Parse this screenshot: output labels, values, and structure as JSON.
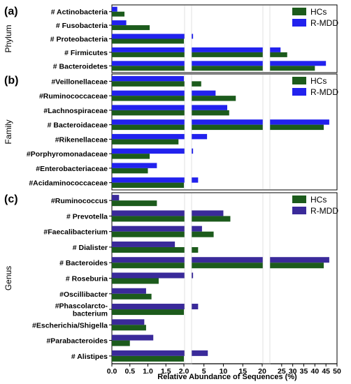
{
  "colors": {
    "hc": "#1c5b1c",
    "rmdd": "#2222ee",
    "rmdd_genus": "#3a2a9a",
    "axis": "#000000",
    "bg": "#ffffff"
  },
  "xaxis": {
    "label": "Relative Abundance of Sequences (%)",
    "segments": [
      {
        "min": 0,
        "max": 2,
        "ticks": [
          0,
          0.5,
          1,
          1.5,
          2
        ],
        "tick_labels": [
          "0.0",
          "0.5",
          "1.0",
          "1.5",
          "2.0"
        ]
      },
      {
        "min": 2,
        "max": 20,
        "ticks": [
          5,
          10,
          15,
          20
        ],
        "tick_labels": [
          "5",
          "10",
          "15",
          "20"
        ]
      },
      {
        "min": 20,
        "max": 50,
        "ticks": [
          25,
          30,
          35,
          40,
          45,
          50
        ],
        "tick_labels": [
          "25",
          "30",
          "35",
          "40",
          "45",
          "50"
        ]
      }
    ]
  },
  "chart_data": [
    {
      "type": "bar",
      "orientation": "horizontal",
      "panel_label": "(a)",
      "ylabel": "Phylum",
      "legend_position": "top-right",
      "categories": [
        "# Actinobacteria",
        "# Fusobacteria",
        "# Proteobacteria",
        "# Firmicutes",
        "# Bacteroidetes"
      ],
      "series": [
        {
          "name": "HCs",
          "color_key": "hc",
          "values": [
            0.35,
            1.05,
            2.0,
            27.5,
            40.0
          ]
        },
        {
          "name": "R-MDD",
          "color_key": "rmdd",
          "values": [
            0.15,
            0.4,
            2.2,
            24.5,
            45.0
          ]
        }
      ]
    },
    {
      "type": "bar",
      "orientation": "horizontal",
      "panel_label": "(b)",
      "ylabel": "Family",
      "legend_position": "top-right",
      "categories": [
        "#Veillonellaceae",
        "#Ruminococcaceae",
        "#Lachnospiraceae",
        "# Bacteroidaceae",
        "#Rikenellaceae",
        "#Porphyromonadaceae",
        "#Enterobacteriaceae",
        "#Acidaminococcaceae"
      ],
      "series": [
        {
          "name": "HCs",
          "color_key": "hc",
          "values": [
            4.3,
            13.2,
            11.5,
            44.0,
            1.85,
            1.05,
            1.0,
            2.0
          ]
        },
        {
          "name": "R-MDD",
          "color_key": "rmdd",
          "values": [
            2.0,
            8.0,
            11.0,
            46.5,
            5.8,
            2.2,
            1.25,
            3.5
          ]
        }
      ]
    },
    {
      "type": "bar",
      "orientation": "horizontal",
      "panel_label": "(c)",
      "ylabel": "Genus",
      "legend_position": "top-right",
      "categories": [
        "#Ruminococcus",
        "# Prevotella",
        "#Faecalibacterium",
        "# Dialister",
        "# Bacteroides",
        "# Roseburia",
        "#Oscillibacter",
        "#Phascolarcto-bacterium",
        "#Escherichia/Shigella",
        "#Parabacteroides",
        "# Alistipes"
      ],
      "category_lines": [
        [
          "#Ruminococcus"
        ],
        [
          "# Prevotella"
        ],
        [
          "#Faecalibacterium"
        ],
        [
          "# Dialister"
        ],
        [
          "# Bacteroides"
        ],
        [
          "# Roseburia"
        ],
        [
          "#Oscillibacter"
        ],
        [
          "#Phascolarcto-",
          "bacterium"
        ],
        [
          "#Escherichia/Shigella"
        ],
        [
          "#Parabacteroides"
        ],
        [
          "# Alistipes"
        ]
      ],
      "series": [
        {
          "name": "HCs",
          "color_key": "hc",
          "values": [
            1.25,
            11.8,
            7.5,
            3.5,
            44.0,
            1.3,
            1.1,
            2.0,
            0.95,
            0.5,
            2.0
          ]
        },
        {
          "name": "R-MDD",
          "color_key": "rmdd_genus",
          "values": [
            0.2,
            10.0,
            4.5,
            1.75,
            46.5,
            2.2,
            0.95,
            3.5,
            0.9,
            1.15,
            6.0
          ]
        }
      ]
    }
  ]
}
